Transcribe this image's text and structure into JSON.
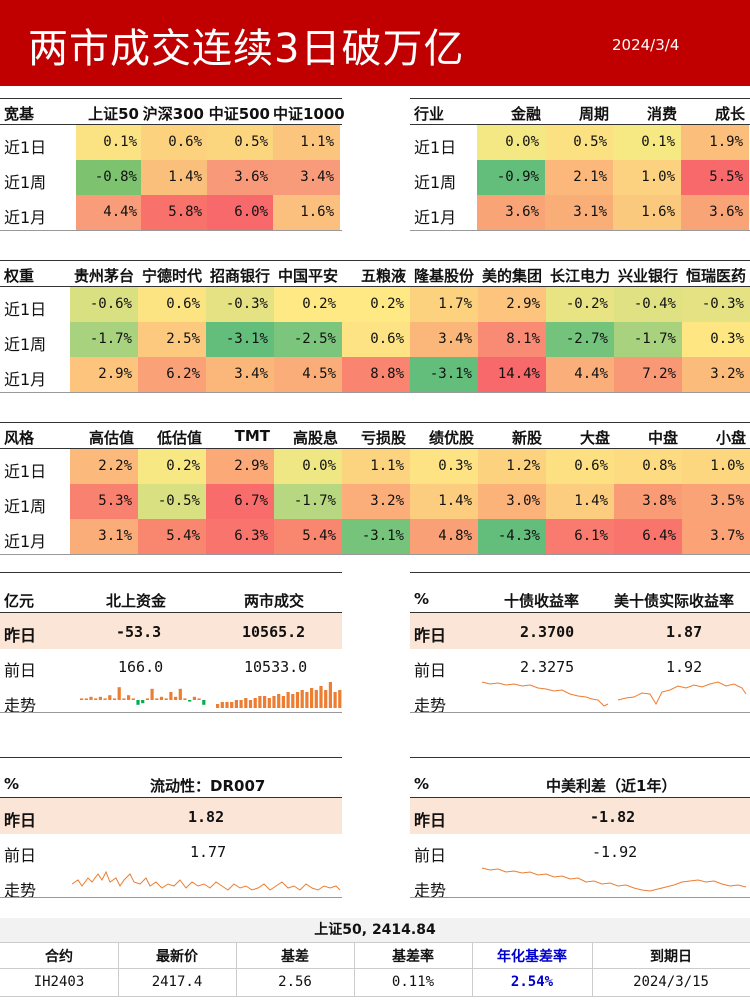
{
  "header": {
    "title": "两市成交连续3日破万亿",
    "date": "2024/3/4"
  },
  "row_labels": [
    "近1日",
    "近1周",
    "近1月"
  ],
  "broad": {
    "corner": "宽基",
    "cols": [
      "上证50",
      "沪深300",
      "中证500",
      "中证1000"
    ],
    "rows": [
      [
        "0.1%",
        "0.6%",
        "0.5%",
        "1.1%"
      ],
      [
        "-0.8%",
        "1.4%",
        "3.6%",
        "3.4%"
      ],
      [
        "4.4%",
        "5.8%",
        "6.0%",
        "1.6%"
      ]
    ],
    "colors": [
      [
        "#fbe383",
        "#fcd27f",
        "#fcd67f",
        "#fbc57d"
      ],
      [
        "#7cc26f",
        "#fbbf7c",
        "#f8997a",
        "#f89b7a"
      ],
      [
        "#f89c79",
        "#f8716b",
        "#f8696b",
        "#fbc07d"
      ]
    ]
  },
  "industry": {
    "corner": "行业",
    "cols": [
      "金融",
      "周期",
      "消费",
      "成长"
    ],
    "rows": [
      [
        "0.0%",
        "0.5%",
        "0.1%",
        "1.9%"
      ],
      [
        "-0.9%",
        "2.1%",
        "1.0%",
        "5.5%"
      ],
      [
        "3.6%",
        "3.1%",
        "1.6%",
        "3.6%"
      ]
    ],
    "colors": [
      [
        "#f3e884",
        "#fce182",
        "#f6e984",
        "#fbbe7b"
      ],
      [
        "#63be7b",
        "#fbb87a",
        "#fcd17f",
        "#f8696b"
      ],
      [
        "#f9a477",
        "#f9ae78",
        "#fbc97e",
        "#f9a477"
      ]
    ]
  },
  "weight": {
    "corner": "权重",
    "cols": [
      "贵州茅台",
      "宁德时代",
      "招商银行",
      "中国平安",
      "五粮液",
      "隆基股份",
      "美的集团",
      "长江电力",
      "兴业银行",
      "恒瑞医药"
    ],
    "rows": [
      [
        "-0.6%",
        "0.6%",
        "-0.3%",
        "0.2%",
        "0.2%",
        "1.7%",
        "2.9%",
        "-0.2%",
        "-0.4%",
        "-0.3%"
      ],
      [
        "-1.7%",
        "2.5%",
        "-3.1%",
        "-2.5%",
        "0.6%",
        "3.4%",
        "8.1%",
        "-2.7%",
        "-1.7%",
        "0.3%"
      ],
      [
        "2.9%",
        "6.2%",
        "3.4%",
        "4.5%",
        "8.8%",
        "-3.1%",
        "14.4%",
        "4.4%",
        "7.2%",
        "3.2%"
      ]
    ],
    "colors": [
      [
        "#d8e082",
        "#fde483",
        "#e4e283",
        "#fee984",
        "#fee984",
        "#fcd27f",
        "#fcc47d",
        "#e8e383",
        "#e0e183",
        "#e4e283"
      ],
      [
        "#a9d27f",
        "#fcc97e",
        "#63be7b",
        "#7cc57c",
        "#fde383",
        "#fbb77a",
        "#f98a73",
        "#74c37c",
        "#a9d27f",
        "#fee783"
      ],
      [
        "#fcc47d",
        "#fba177",
        "#fbb77a",
        "#faad79",
        "#f9846f",
        "#63be7b",
        "#f8696b",
        "#faae79",
        "#f99875",
        "#fbbb7b"
      ]
    ]
  },
  "style": {
    "corner": "风格",
    "cols": [
      "高估值",
      "低估值",
      "TMT",
      "高股息",
      "亏损股",
      "绩优股",
      "新股",
      "大盘",
      "中盘",
      "小盘"
    ],
    "rows": [
      [
        "2.2%",
        "0.2%",
        "2.9%",
        "0.0%",
        "1.1%",
        "0.3%",
        "1.2%",
        "0.6%",
        "0.8%",
        "1.0%"
      ],
      [
        "5.3%",
        "-0.5%",
        "6.7%",
        "-1.7%",
        "3.2%",
        "1.4%",
        "3.0%",
        "1.4%",
        "3.8%",
        "3.5%"
      ],
      [
        "3.1%",
        "5.4%",
        "6.3%",
        "5.4%",
        "-3.1%",
        "4.8%",
        "-4.3%",
        "6.1%",
        "6.4%",
        "3.7%"
      ]
    ],
    "colors": [
      [
        "#fbb97b",
        "#f8e884",
        "#fba977",
        "#eee784",
        "#fcd47f",
        "#fde383",
        "#fcd27f",
        "#fde082",
        "#fcdb81",
        "#fcd780"
      ],
      [
        "#f8826f",
        "#d8e082",
        "#f86c6c",
        "#b7d780",
        "#fbae79",
        "#fccd7f",
        "#fbb37a",
        "#fccd7f",
        "#f99b75",
        "#f9a377"
      ],
      [
        "#fbad79",
        "#f9876f",
        "#f8746d",
        "#f9876f",
        "#76c47c",
        "#faa076",
        "#63be7b",
        "#f97a6e",
        "#f9746d",
        "#fba277"
      ]
    ]
  },
  "funds": {
    "unit": "亿元",
    "col1": "北上资金",
    "col2": "两市成交",
    "yesterday_label": "昨日",
    "yesterday": [
      "-53.3",
      "10565.2"
    ],
    "prev_label": "前日",
    "prev": [
      "166.0",
      "10533.0"
    ],
    "trend_label": "走势"
  },
  "yields": {
    "unit": "%",
    "col1": "十债收益率",
    "col2": "美十债实际收益率",
    "yesterday_label": "昨日",
    "yesterday": [
      "2.3700",
      "1.87"
    ],
    "prev_label": "前日",
    "prev": [
      "2.3275",
      "1.92"
    ],
    "trend_label": "走势"
  },
  "liquidity": {
    "unit": "%",
    "title": "流动性：DR007",
    "yesterday_label": "昨日",
    "yesterday": "1.82",
    "prev_label": "前日",
    "prev": "1.77",
    "trend_label": "走势"
  },
  "spread": {
    "unit": "%",
    "title": "中美利差（近1年）",
    "yesterday_label": "昨日",
    "yesterday": "-1.82",
    "prev_label": "前日",
    "prev": "-1.92",
    "trend_label": "走势"
  },
  "futures": {
    "title": "上证50, 2414.84",
    "headers": [
      "合约",
      "最新价",
      "基差",
      "基差率",
      "年化基差率",
      "到期日"
    ],
    "row": [
      "IH2403",
      "2417.4",
      "2.56",
      "0.11%",
      "2.54%",
      "2024/3/15"
    ],
    "accent": "#0000cc"
  },
  "colors": {
    "brand_red": "#c00000",
    "peach": "#fbe5d6",
    "trend_orange": "#ed7d31",
    "bar_green": "#00b050"
  }
}
